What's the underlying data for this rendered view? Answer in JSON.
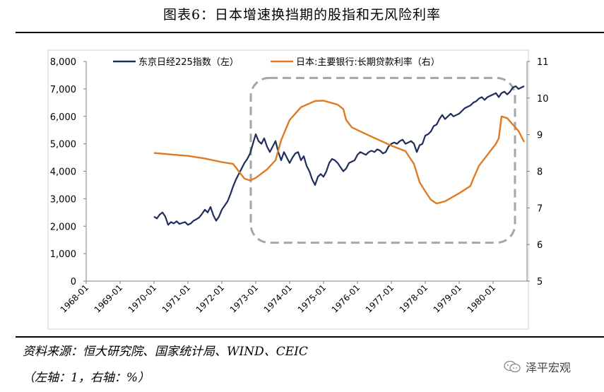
{
  "page": {
    "title": "图表6：日本增速换挡期的股指和无风险利率",
    "source": "资料来源：恒大研究院、国家统计局、WIND、CEIC",
    "axes_note": "（左轴：1，右轴：%）",
    "brand": "泽平宏观",
    "brand_icon": "wechat-icon"
  },
  "chart_data": {
    "type": "line",
    "title": "",
    "xlabel": "",
    "ylabel": "",
    "x_ticks": [
      "1968-01",
      "1969-01",
      "1970-01",
      "1971-01",
      "1972-01",
      "1973-01",
      "1974-01",
      "1975-01",
      "1976-01",
      "1977-01",
      "1978-01",
      "1979-01",
      "1980-01"
    ],
    "x_range": [
      "1968-01",
      "1981-01"
    ],
    "y_left": {
      "range": [
        0,
        8000
      ],
      "ticks": [
        "0",
        "1,000",
        "2,000",
        "3,000",
        "4,000",
        "5,000",
        "6,000",
        "7,000",
        "8,000"
      ]
    },
    "y_right": {
      "range": [
        5,
        11
      ],
      "ticks": [
        "5",
        "6",
        "7",
        "8",
        "9",
        "10",
        "11"
      ]
    },
    "legend_position": "top",
    "grid": false,
    "annotation": "dashed rounded rectangle highlighting 1973-01 to 1980-07",
    "series": [
      {
        "name": "东京日经225指数（左）",
        "axis": "left",
        "color": "#1f2d5c",
        "points": [
          [
            "1970-01",
            2350
          ],
          [
            "1970-02",
            2280
          ],
          [
            "1970-03",
            2420
          ],
          [
            "1970-04",
            2500
          ],
          [
            "1970-05",
            2350
          ],
          [
            "1970-06",
            2050
          ],
          [
            "1970-07",
            2150
          ],
          [
            "1970-08",
            2100
          ],
          [
            "1970-09",
            2180
          ],
          [
            "1970-10",
            2080
          ],
          [
            "1970-11",
            2120
          ],
          [
            "1970-12",
            2150
          ],
          [
            "1971-01",
            2050
          ],
          [
            "1971-02",
            2100
          ],
          [
            "1971-03",
            2200
          ],
          [
            "1971-04",
            2250
          ],
          [
            "1971-05",
            2320
          ],
          [
            "1971-06",
            2450
          ],
          [
            "1971-07",
            2600
          ],
          [
            "1971-08",
            2500
          ],
          [
            "1971-09",
            2700
          ],
          [
            "1971-10",
            2400
          ],
          [
            "1971-11",
            2200
          ],
          [
            "1971-12",
            2350
          ],
          [
            "1972-01",
            2600
          ],
          [
            "1972-02",
            2750
          ],
          [
            "1972-03",
            2900
          ],
          [
            "1972-04",
            3150
          ],
          [
            "1972-05",
            3450
          ],
          [
            "1972-06",
            3700
          ],
          [
            "1972-07",
            3900
          ],
          [
            "1972-08",
            4100
          ],
          [
            "1972-09",
            4300
          ],
          [
            "1972-10",
            4450
          ],
          [
            "1972-11",
            4650
          ],
          [
            "1972-12",
            5000
          ],
          [
            "1973-01",
            5350
          ],
          [
            "1973-02",
            5100
          ],
          [
            "1973-03",
            5000
          ],
          [
            "1973-04",
            5200
          ],
          [
            "1973-05",
            4900
          ],
          [
            "1973-06",
            4700
          ],
          [
            "1973-07",
            4900
          ],
          [
            "1973-08",
            5100
          ],
          [
            "1973-09",
            4700
          ],
          [
            "1973-10",
            4400
          ],
          [
            "1973-11",
            4700
          ],
          [
            "1973-12",
            4500
          ],
          [
            "1974-01",
            4300
          ],
          [
            "1974-02",
            4500
          ],
          [
            "1974-03",
            4650
          ],
          [
            "1974-04",
            4700
          ],
          [
            "1974-05",
            4400
          ],
          [
            "1974-06",
            4550
          ],
          [
            "1974-07",
            4200
          ],
          [
            "1974-08",
            4000
          ],
          [
            "1974-09",
            3700
          ],
          [
            "1974-10",
            3500
          ],
          [
            "1974-11",
            3800
          ],
          [
            "1974-12",
            3900
          ],
          [
            "1975-01",
            3800
          ],
          [
            "1975-02",
            4000
          ],
          [
            "1975-03",
            4300
          ],
          [
            "1975-04",
            4450
          ],
          [
            "1975-05",
            4400
          ],
          [
            "1975-06",
            4300
          ],
          [
            "1975-07",
            4150
          ],
          [
            "1975-08",
            4000
          ],
          [
            "1975-09",
            4100
          ],
          [
            "1975-10",
            4300
          ],
          [
            "1975-11",
            4350
          ],
          [
            "1975-12",
            4400
          ],
          [
            "1976-01",
            4600
          ],
          [
            "1976-02",
            4700
          ],
          [
            "1976-03",
            4650
          ],
          [
            "1976-04",
            4600
          ],
          [
            "1976-05",
            4700
          ],
          [
            "1976-06",
            4750
          ],
          [
            "1976-07",
            4700
          ],
          [
            "1976-08",
            4800
          ],
          [
            "1976-09",
            4750
          ],
          [
            "1976-10",
            4650
          ],
          [
            "1976-11",
            4700
          ],
          [
            "1976-12",
            4900
          ],
          [
            "1977-01",
            5000
          ],
          [
            "1977-02",
            5050
          ],
          [
            "1977-03",
            5000
          ],
          [
            "1977-04",
            5100
          ],
          [
            "1977-05",
            5150
          ],
          [
            "1977-06",
            5000
          ],
          [
            "1977-07",
            5050
          ],
          [
            "1977-08",
            5100
          ],
          [
            "1977-09",
            5000
          ],
          [
            "1977-10",
            4700
          ],
          [
            "1977-11",
            4950
          ],
          [
            "1977-12",
            5000
          ],
          [
            "1978-01",
            5300
          ],
          [
            "1978-02",
            5350
          ],
          [
            "1978-03",
            5450
          ],
          [
            "1978-04",
            5650
          ],
          [
            "1978-05",
            5700
          ],
          [
            "1978-06",
            5900
          ],
          [
            "1978-07",
            6050
          ],
          [
            "1978-08",
            5900
          ],
          [
            "1978-09",
            6000
          ],
          [
            "1978-10",
            6100
          ],
          [
            "1978-11",
            6000
          ],
          [
            "1978-12",
            6050
          ],
          [
            "1979-01",
            6100
          ],
          [
            "1979-02",
            6200
          ],
          [
            "1979-03",
            6300
          ],
          [
            "1979-04",
            6350
          ],
          [
            "1979-05",
            6400
          ],
          [
            "1979-06",
            6500
          ],
          [
            "1979-07",
            6550
          ],
          [
            "1979-08",
            6650
          ],
          [
            "1979-09",
            6700
          ],
          [
            "1979-10",
            6600
          ],
          [
            "1979-11",
            6700
          ],
          [
            "1979-12",
            6750
          ],
          [
            "1980-01",
            6800
          ],
          [
            "1980-02",
            6850
          ],
          [
            "1980-03",
            6700
          ],
          [
            "1980-04",
            6850
          ],
          [
            "1980-05",
            6900
          ],
          [
            "1980-06",
            6800
          ],
          [
            "1980-07",
            6900
          ],
          [
            "1980-08",
            7050
          ],
          [
            "1980-09",
            7100
          ],
          [
            "1980-10",
            7000
          ],
          [
            "1980-11",
            7050
          ],
          [
            "1980-12",
            7100
          ]
        ]
      },
      {
        "name": "日本:主要银行:长期贷款利率（右）",
        "axis": "right",
        "color": "#e07a22",
        "points": [
          [
            "1970-01",
            8.5
          ],
          [
            "1970-07",
            8.46
          ],
          [
            "1971-01",
            8.42
          ],
          [
            "1971-07",
            8.35
          ],
          [
            "1972-01",
            8.25
          ],
          [
            "1972-05",
            8.2
          ],
          [
            "1972-07",
            8.0
          ],
          [
            "1972-09",
            7.8
          ],
          [
            "1972-11",
            7.75
          ],
          [
            "1973-01",
            7.82
          ],
          [
            "1973-05",
            8.05
          ],
          [
            "1973-08",
            8.3
          ],
          [
            "1973-10",
            8.85
          ],
          [
            "1974-01",
            9.4
          ],
          [
            "1974-05",
            9.75
          ],
          [
            "1974-10",
            9.92
          ],
          [
            "1975-01",
            9.93
          ],
          [
            "1975-06",
            9.82
          ],
          [
            "1975-08",
            9.7
          ],
          [
            "1975-09",
            9.4
          ],
          [
            "1975-11",
            9.2
          ],
          [
            "1976-05",
            8.98
          ],
          [
            "1977-01",
            8.7
          ],
          [
            "1977-06",
            8.55
          ],
          [
            "1977-09",
            8.2
          ],
          [
            "1977-11",
            7.7
          ],
          [
            "1978-01",
            7.45
          ],
          [
            "1978-03",
            7.22
          ],
          [
            "1978-05",
            7.12
          ],
          [
            "1978-08",
            7.18
          ],
          [
            "1979-01",
            7.4
          ],
          [
            "1979-05",
            7.6
          ],
          [
            "1979-06",
            7.8
          ],
          [
            "1979-08",
            8.15
          ],
          [
            "1979-11",
            8.45
          ],
          [
            "1980-02",
            8.75
          ],
          [
            "1980-03",
            8.9
          ],
          [
            "1980-04",
            9.5
          ],
          [
            "1980-06",
            9.45
          ],
          [
            "1980-10",
            9.1
          ],
          [
            "1980-12",
            8.8
          ]
        ]
      }
    ]
  }
}
